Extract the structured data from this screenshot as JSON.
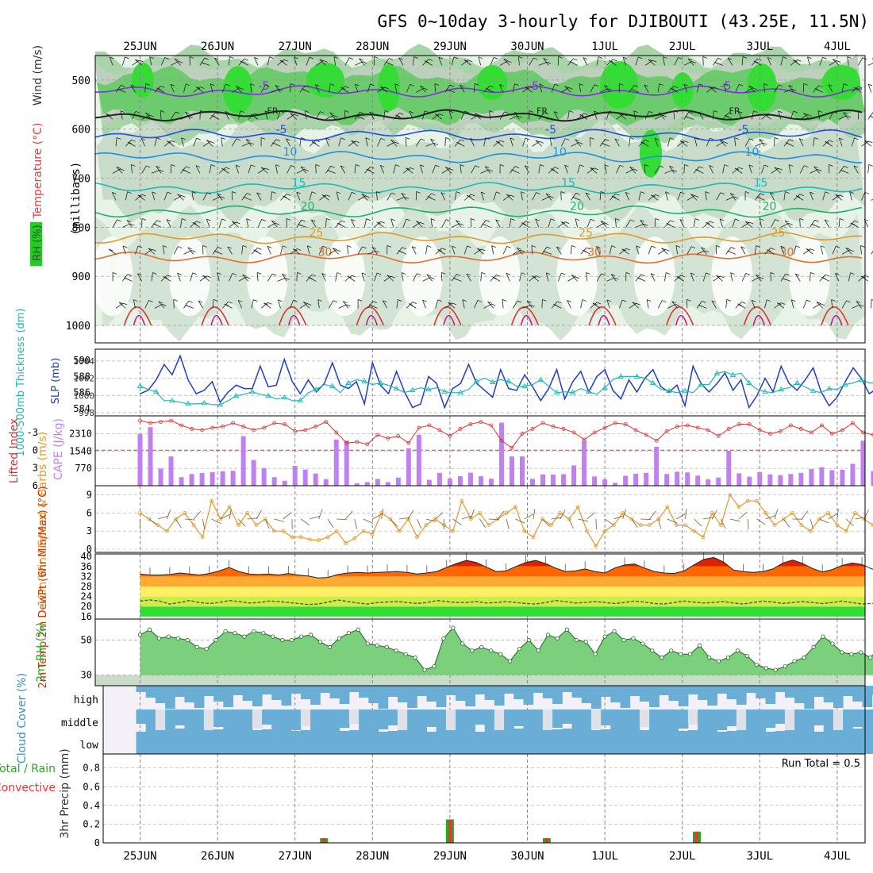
{
  "title": "GFS 0~10day 3-hourly for DJIBOUTI (43.25E, 11.5N)",
  "dates": [
    "25JUN",
    "26JUN",
    "27JUN",
    "28JUN",
    "29JUN",
    "30JUN",
    "1JUL",
    "2JUL",
    "3JUL",
    "4JUL"
  ],
  "colors": {
    "rh_green": "#22cc22",
    "rh_light": "#cfe8cf",
    "slp": "#1f3fbf",
    "thick": "#22b5b5",
    "li": "#dd3333",
    "cape": "#c080f0",
    "wind10": "#e09a2a",
    "cloud": "#6aaed6",
    "precip_total": "#22aa22",
    "precip_conv": "#ee3333"
  },
  "chart_data": [
    {
      "type": "contour",
      "title": "GFS 0~10day 3-hourly for DJIBOUTI (43.25E, 11.5N)",
      "ylabel": "(millibars)",
      "legend_labels": [
        "RH (%)",
        "Temperature (°C)",
        "Wind (m/s)"
      ],
      "y_ticks": [
        "500",
        "600",
        "700",
        "800",
        "900",
        "1000"
      ],
      "ylim": [
        1000,
        450
      ],
      "isotherms": [
        {
          "label": "-5",
          "pressure": 523,
          "color": "#8a2be2"
        },
        {
          "label": "FR",
          "pressure": 572,
          "color": "#222222"
        },
        {
          "label": "-5",
          "pressure": 612,
          "color": "#1f4fe0"
        },
        {
          "label": "10",
          "pressure": 657,
          "color": "#1e90e0"
        },
        {
          "label": "15",
          "pressure": 720,
          "color": "#20b8b8"
        },
        {
          "label": "20",
          "pressure": 768,
          "color": "#20b070"
        },
        {
          "label": "25",
          "pressure": 822,
          "color": "#e09a2a"
        },
        {
          "label": "30",
          "pressure": 862,
          "color": "#e07030"
        }
      ]
    },
    {
      "type": "line",
      "ylabel_left": "1000-500mb Thickness (dm)",
      "ylabel_right": "SLP (mb)",
      "left_ticks": [
        "590",
        "588",
        "586",
        "584"
      ],
      "right_ticks": [
        "1004",
        "1002",
        "1000",
        "998"
      ],
      "series": [
        {
          "name": "SLP (mb)",
          "values": [
            1000.2,
            1000.6,
            1001.8,
            1003.6,
            1002.4,
            1004.6,
            1001.8,
            1000.2,
            1000.6,
            1001.6,
            999.2,
            1000.4,
            1001.2,
            1000.8,
            1000.8,
            1003.4,
            1001.0,
            1001.2,
            1004.2,
            1001.6,
            1000.2,
            1001.8,
            1000.4,
            1001.4,
            1003.8,
            1001.2,
            1000.8,
            1001.6,
            999.0,
            1003.8,
            1001.2,
            1000.2,
            1002.8,
            1000.4,
            998.6,
            999.0,
            1002.2,
            1001.4,
            998.6,
            1000.8,
            1001.4,
            1003.6,
            1001.4,
            1000.6,
            999.8,
            1003.0,
            1000.8,
            1000.6,
            1002.4,
            1001.0,
            999.4,
            1000.8,
            1003.0,
            999.6,
            1001.6,
            1002.8,
            1000.4,
            1002.2,
            1003.0,
            1000.6,
            999.6,
            1001.8,
            1000.4,
            1002.0,
            1003.0,
            1001.0,
            1000.4,
            1001.2,
            998.8,
            1003.4,
            1001.4,
            1000.4,
            1001.4,
            1002.6,
            1000.6,
            1001.8,
            998.6,
            1000.0,
            1002.0,
            1000.4,
            1003.4,
            1001.4,
            1000.6,
            1001.8,
            1003.2,
            1000.4,
            998.8,
            999.8,
            1001.6,
            1003.2,
            1002.0,
            1000.2,
            1000.8,
            1002.8,
            1001.6,
            1001.0,
            999.8,
            1002.2,
            1003.2,
            1001.6,
            1000.2,
            1000.8,
            1003.2,
            1002.0,
            1001.0,
            1000.8,
            1001.6,
            1002.8,
            1001.4,
            1000.6,
            1002.2,
            1001.2,
            1003.0,
            1002.6,
            1000.0,
            1003.8
          ]
        },
        {
          "name": "1000-500mb Thickness (dm)",
          "values": [
            586.8,
            586.4,
            586.1,
            585.0,
            585.0,
            584.8,
            584.6,
            584.6,
            584.7,
            584.5,
            584.5,
            585.0,
            585.6,
            585.8,
            586.1,
            585.8,
            585.6,
            585.2,
            585.4,
            585.0,
            585.0,
            586.0,
            586.4,
            587.0,
            586.8,
            586.0,
            587.2,
            587.6,
            587.4,
            587.0,
            587.2,
            586.9,
            586.5,
            586.0,
            586.3,
            586.6,
            586.4,
            586.6,
            586.1,
            586.0,
            586.0,
            586.4,
            587.4,
            587.8,
            587.3,
            587.6,
            587.4,
            586.8,
            586.8,
            587.0,
            587.6,
            586.8,
            586.0,
            586.1,
            586.0,
            586.5,
            586.1,
            585.8,
            586.6,
            587.6,
            588.0,
            588.0,
            588.0,
            587.8,
            587.2,
            586.4,
            586.2,
            586.0,
            586.2,
            586.0,
            587.0,
            587.0,
            588.4,
            588.6,
            588.2,
            588.4,
            587.2,
            586.4,
            586.1,
            586.0,
            586.4,
            586.6,
            587.2,
            586.7,
            586.2,
            586.0,
            586.5,
            586.4,
            587.0,
            587.2,
            587.6,
            587.2,
            587.2,
            587.6,
            587.9,
            587.9,
            587.4,
            587.6,
            587.4,
            587.0,
            586.8,
            586.6,
            586.6,
            586.5,
            586.9,
            587.4,
            587.8,
            587.7,
            587.2,
            586.8,
            586.6,
            586.4,
            586.2,
            585.6,
            584.8,
            584.5
          ]
        }
      ]
    },
    {
      "type": "bar",
      "ylabel_left": "Lifted Index",
      "ylabel_right": "CAPE (J/kg)",
      "left_ticks": [
        "-3",
        "0",
        "3",
        "6"
      ],
      "right_ticks": [
        "2310",
        "1540",
        "770"
      ],
      "series": [
        {
          "name": "CAPE (J/kg)",
          "values": [
            2300,
            2600,
            760,
            1300,
            380,
            520,
            560,
            600,
            640,
            660,
            2200,
            1140,
            780,
            380,
            220,
            880,
            720,
            540,
            290,
            2050,
            2000,
            110,
            160,
            300,
            160,
            360,
            1660,
            2260,
            260,
            570,
            320,
            420,
            580,
            420,
            310,
            2800,
            1300,
            1300,
            300,
            500,
            490,
            510,
            900,
            2000,
            410,
            280,
            130,
            440,
            530,
            570,
            1730,
            520,
            620,
            590,
            450,
            280,
            360,
            1550,
            550,
            400,
            600,
            500,
            470,
            520,
            570,
            740,
            820,
            690,
            710,
            970,
            2000,
            650,
            430,
            470,
            520,
            470,
            2400,
            1570,
            540,
            160,
            200,
            710,
            980,
            1180,
            600,
            800,
            920,
            500,
            380,
            470
          ]
        },
        {
          "name": "Lifted Index",
          "values": [
            -5.0,
            -4.6,
            -4.8,
            -5.0,
            -4.2,
            -3.6,
            -3.4,
            -3.8,
            -4.0,
            -4.6,
            -4.0,
            -3.4,
            -3.8,
            -4.6,
            -4.4,
            -3.2,
            -3.4,
            -4.0,
            -4.8,
            -3.0,
            -1.2,
            -1.4,
            -1.0,
            -2.6,
            -2.0,
            -2.4,
            -1.2,
            -3.8,
            -4.2,
            -3.4,
            -2.4,
            -3.6,
            -4.4,
            -4.8,
            -4.2,
            -1.6,
            -0.4,
            -2.8,
            -3.6,
            -4.6,
            -4.0,
            -3.6,
            -3.0,
            -1.8,
            -3.0,
            -3.8,
            -4.6,
            -4.4,
            -3.4,
            -2.6,
            -1.6,
            -3.2,
            -4.0,
            -4.2,
            -3.8,
            -3.4,
            -2.4,
            -3.6,
            -4.4,
            -4.4,
            -3.4,
            -2.8,
            -3.2,
            -4.2,
            -3.6,
            -3.0,
            -4.2,
            -2.8,
            -3.4,
            -4.6,
            -3.0,
            -2.6,
            -3.8,
            -4.2,
            -4.0,
            -3.2,
            -3.6,
            -4.0,
            -3.2,
            -4.0,
            -4.4,
            -3.6,
            -3.2,
            -3.6,
            -4.0,
            -4.2,
            -3.6,
            -3.8,
            -3.2,
            -3.8
          ]
        }
      ]
    },
    {
      "type": "line",
      "ylabel": "10m Wind Speed & Barbs (m/s)",
      "ticks": [
        "9",
        "6",
        "3",
        "0"
      ],
      "ylim": [
        0,
        10
      ],
      "series": [
        {
          "name": "10m Wind Speed",
          "values": [
            6.0,
            5.0,
            4.0,
            3.0,
            5.0,
            6.0,
            4.0,
            2.0,
            8.0,
            5.0,
            7.0,
            4.0,
            6.0,
            4.0,
            5.0,
            3.0,
            3.0,
            2.0,
            2.0,
            1.6,
            1.5,
            2.0,
            3.0,
            1.0,
            1.8,
            3.0,
            2.5,
            6.0,
            5.0,
            3.0,
            5.0,
            2.0,
            4.0,
            5.0,
            4.0,
            3.0,
            8.0,
            5.0,
            6.0,
            4.0,
            5.0,
            6.0,
            7.0,
            3.0,
            2.0,
            5.0,
            4.0,
            6.0,
            5.0,
            7.0,
            3.0,
            0.5,
            3.0,
            4.0,
            6.0,
            5.0,
            4.0,
            4.0,
            5.0,
            7.0,
            4.0,
            4.0,
            3.0,
            2.0,
            6.0,
            4.0,
            9.0,
            7.0,
            8.0,
            8.0,
            6.0,
            4.0,
            5.0,
            6.0,
            4.0,
            3.0,
            5.0,
            6.0,
            4.0,
            3.0,
            6.0,
            5.0,
            4.0,
            5.0,
            5.0,
            4.0,
            3.0,
            5.0,
            7.0,
            5.0,
            4.0,
            6.0,
            7.0,
            4.0,
            4.0,
            6.0,
            5.0,
            9.0,
            8.0,
            6.0,
            4.0,
            5.0,
            8.0,
            9.0
          ]
        }
      ]
    },
    {
      "type": "area",
      "ylabel": "2m Temp 2m DewPt (6hr Min/Max) (°C)",
      "ticks": [
        "40",
        "36",
        "32",
        "28",
        "24",
        "20",
        "16"
      ],
      "ylim": [
        16,
        41
      ],
      "series": [
        {
          "name": "2m Temp",
          "values": [
            33.0,
            32.6,
            32.6,
            32.8,
            33.4,
            33.0,
            32.6,
            33.2,
            34.2,
            35.6,
            34.0,
            33.0,
            32.8,
            33.0,
            32.6,
            33.2,
            32.6,
            32.2,
            31.4,
            31.6,
            32.8,
            33.4,
            33.6,
            33.4,
            33.6,
            33.8,
            34.0,
            33.6,
            33.0,
            33.4,
            34.0,
            35.6,
            37.2,
            38.4,
            37.6,
            35.8,
            34.0,
            34.2,
            36.0,
            37.6,
            38.4,
            37.2,
            35.4,
            34.0,
            34.2,
            35.0,
            34.0,
            33.4,
            35.4,
            36.6,
            37.0,
            35.4,
            34.0,
            33.4,
            33.2,
            34.2,
            36.6,
            38.8,
            39.6,
            37.8,
            34.6,
            34.0,
            33.6,
            34.0,
            35.0,
            37.4,
            38.6,
            37.2,
            35.2,
            33.8,
            34.8,
            36.4,
            37.4,
            36.8,
            35.0,
            33.8,
            33.6,
            34.4,
            35.6,
            37.2,
            38.2,
            36.6,
            34.6,
            33.8,
            34.2,
            34.6,
            35.6,
            36.0,
            34.6,
            33.8,
            33.4,
            33.4,
            33.8,
            36.0
          ]
        },
        {
          "name": "2m DewPt",
          "values": [
            22.2,
            22.6,
            22.2,
            21.0,
            21.6,
            22.4,
            21.6,
            21.2,
            21.6,
            22.4,
            22.0,
            21.4,
            21.6,
            22.2,
            22.0,
            21.6,
            21.2,
            20.8,
            21.0,
            21.8,
            22.6,
            22.0,
            21.4,
            21.0,
            21.6,
            21.8,
            22.0,
            21.6,
            21.2,
            21.6,
            22.4,
            22.0,
            21.6,
            21.6,
            22.0,
            21.4,
            21.6,
            22.0,
            21.6,
            21.2,
            21.0,
            21.6,
            22.4,
            22.0,
            21.4,
            21.6,
            22.0,
            21.6,
            21.2,
            21.6,
            22.2,
            21.8,
            21.2,
            21.0,
            21.6,
            22.2,
            21.8,
            21.4,
            21.6,
            22.0,
            21.4,
            21.0,
            21.6,
            22.2,
            21.8,
            21.2,
            21.6,
            22.0,
            21.6,
            21.2,
            21.6,
            22.2,
            21.6,
            21.0,
            21.2,
            21.8,
            22.0,
            21.6,
            21.2,
            21.6,
            22.0,
            21.4,
            21.2,
            21.6,
            22.0,
            21.6,
            21.2,
            21.4,
            21.8,
            22.0,
            21.6,
            21.2,
            21.4,
            21.8
          ]
        }
      ]
    },
    {
      "type": "area",
      "ylabel": "2m RH (%)",
      "ticks": [
        "50",
        "30"
      ],
      "ylim": [
        24,
        62
      ],
      "series": [
        {
          "name": "2m RH",
          "values": [
            53,
            56,
            51,
            52,
            51,
            50,
            46,
            45,
            50,
            55,
            54,
            52,
            55,
            54,
            52,
            50,
            50,
            52,
            53,
            49,
            46,
            51,
            54,
            56,
            48,
            47,
            46,
            44,
            42,
            40,
            33,
            35,
            51,
            57,
            48,
            44,
            46,
            44,
            42,
            38,
            45,
            50,
            44,
            53,
            51,
            56,
            50,
            49,
            42,
            52,
            55,
            50,
            51,
            48,
            44,
            40,
            44,
            42,
            42,
            47,
            40,
            38,
            40,
            44,
            41,
            36,
            34,
            33,
            35,
            38,
            40,
            46,
            52,
            48,
            43,
            42,
            43,
            40,
            46,
            50,
            40,
            42,
            45,
            42,
            41,
            43,
            44,
            38,
            35,
            33,
            40,
            41,
            40,
            42,
            45,
            44,
            42,
            40
          ]
        }
      ]
    },
    {
      "type": "heatmap",
      "ylabel": "Cloud Cover (%)",
      "levels": [
        "high",
        "middle",
        "low"
      ]
    },
    {
      "type": "bar",
      "ylabel": "3hr Precip (mm)",
      "legend_labels": [
        "Total / Rain",
        "Convective"
      ],
      "annotation": "Run Total = 0.5",
      "ticks": [
        "0.8",
        "0.6",
        "0.4",
        "0.2",
        "0"
      ],
      "ylim": [
        0,
        0.95
      ],
      "series": [
        {
          "name": "3hr Precip",
          "values": [
            {
              "t": 19.0,
              "v": 0.05
            },
            {
              "t": 32.0,
              "v": 0.25
            },
            {
              "t": 42.0,
              "v": 0.05
            },
            {
              "t": 57.5,
              "v": 0.12
            }
          ]
        }
      ]
    }
  ]
}
